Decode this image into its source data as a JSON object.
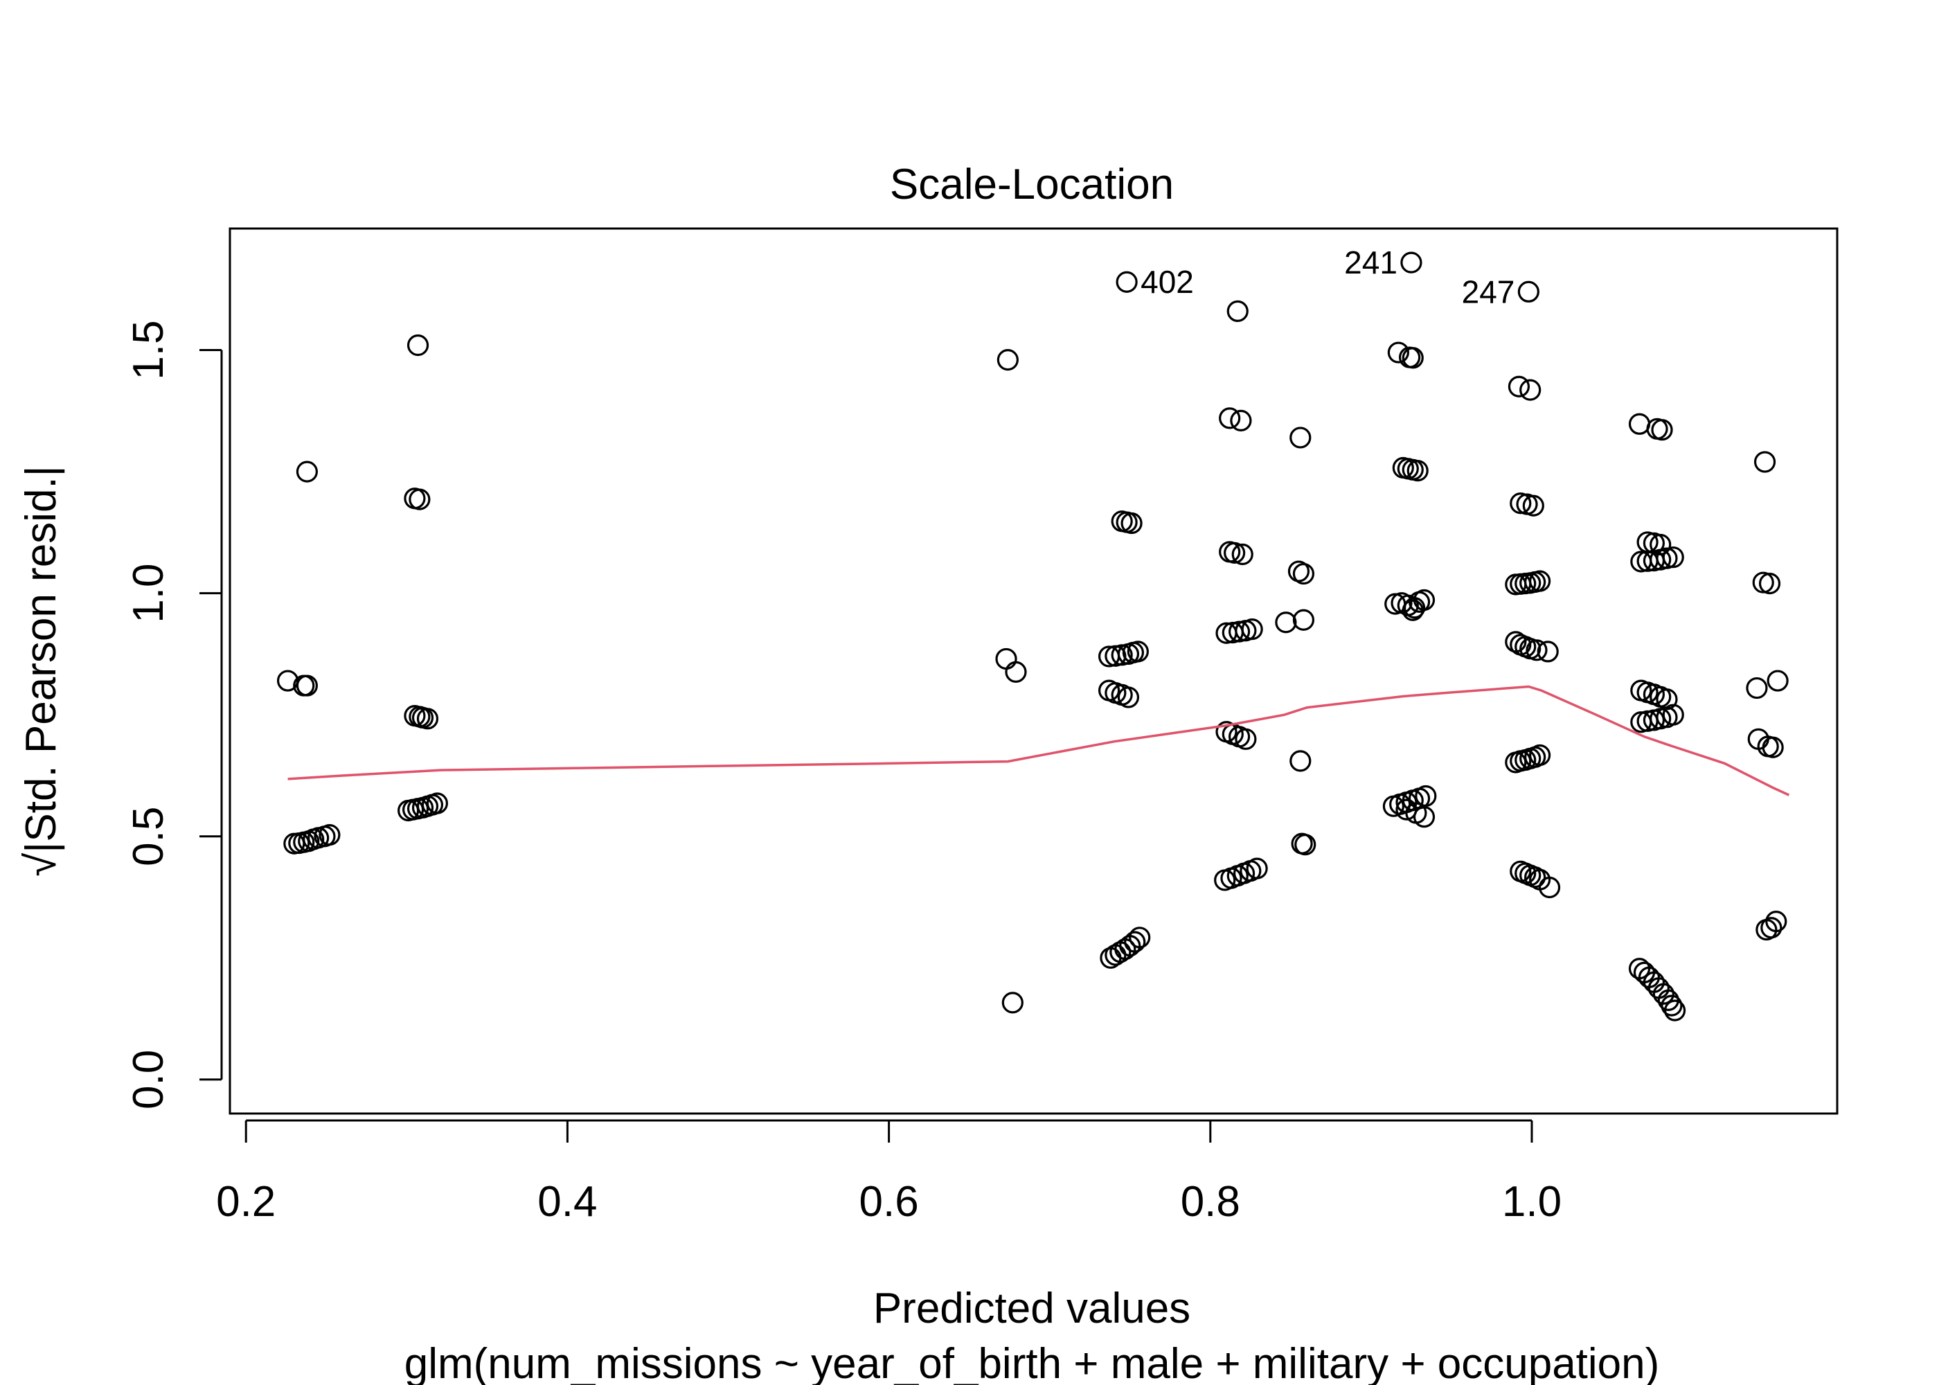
{
  "chart_data": {
    "type": "scatter",
    "title": "Scale-Location",
    "xlabel": "Predicted values",
    "ylabel": "√|Std. Pearson resid.|",
    "subtitle": "glm(num_missions ~ year_of_birth + male + military + occupation)",
    "xlim": [
      0.19,
      1.19
    ],
    "ylim": [
      -0.07,
      1.75
    ],
    "xticks": [
      0.2,
      0.4,
      0.6,
      0.8,
      1.0
    ],
    "xtick_labels": [
      "0.2",
      "0.4",
      "0.6",
      "0.8",
      "1.0"
    ],
    "yticks": [
      0.0,
      0.5,
      1.0,
      1.5
    ],
    "ytick_labels": [
      "0.0",
      "0.5",
      "1.0",
      "1.5"
    ],
    "grid": false,
    "point_color": "#000000",
    "smooth_color": "#DF536B",
    "labeled_points": [
      {
        "label": "402",
        "x": 0.748,
        "y": 1.64,
        "side": "right"
      },
      {
        "label": "241",
        "x": 0.925,
        "y": 1.68,
        "side": "left"
      },
      {
        "label": "247",
        "x": 0.998,
        "y": 1.62,
        "side": "left"
      }
    ],
    "points": [
      [
        0.226,
        0.82
      ],
      [
        0.236,
        0.81
      ],
      [
        0.238,
        0.81
      ],
      [
        0.238,
        1.25
      ],
      [
        0.23,
        0.485
      ],
      [
        0.233,
        0.486
      ],
      [
        0.236,
        0.488
      ],
      [
        0.239,
        0.49
      ],
      [
        0.242,
        0.494
      ],
      [
        0.245,
        0.497
      ],
      [
        0.249,
        0.5
      ],
      [
        0.252,
        0.503
      ],
      [
        0.307,
        1.51
      ],
      [
        0.305,
        1.195
      ],
      [
        0.308,
        1.193
      ],
      [
        0.305,
        0.748
      ],
      [
        0.308,
        0.746
      ],
      [
        0.31,
        0.744
      ],
      [
        0.313,
        0.742
      ],
      [
        0.301,
        0.553
      ],
      [
        0.304,
        0.555
      ],
      [
        0.307,
        0.557
      ],
      [
        0.31,
        0.559
      ],
      [
        0.313,
        0.562
      ],
      [
        0.316,
        0.565
      ],
      [
        0.319,
        0.568
      ],
      [
        0.674,
        1.48
      ],
      [
        0.673,
        0.865
      ],
      [
        0.679,
        0.838
      ],
      [
        0.677,
        0.158
      ],
      [
        0.745,
        1.148
      ],
      [
        0.748,
        1.146
      ],
      [
        0.751,
        1.144
      ],
      [
        0.737,
        0.87
      ],
      [
        0.741,
        0.871
      ],
      [
        0.745,
        0.873
      ],
      [
        0.749,
        0.875
      ],
      [
        0.752,
        0.878
      ],
      [
        0.755,
        0.88
      ],
      [
        0.737,
        0.8
      ],
      [
        0.741,
        0.795
      ],
      [
        0.745,
        0.791
      ],
      [
        0.749,
        0.786
      ],
      [
        0.738,
        0.25
      ],
      [
        0.741,
        0.256
      ],
      [
        0.744,
        0.262
      ],
      [
        0.747,
        0.268
      ],
      [
        0.75,
        0.275
      ],
      [
        0.753,
        0.283
      ],
      [
        0.756,
        0.292
      ],
      [
        0.817,
        1.58
      ],
      [
        0.812,
        1.36
      ],
      [
        0.819,
        1.355
      ],
      [
        0.812,
        1.085
      ],
      [
        0.815,
        1.083
      ],
      [
        0.82,
        1.08
      ],
      [
        0.81,
        0.918
      ],
      [
        0.814,
        0.919
      ],
      [
        0.818,
        0.921
      ],
      [
        0.822,
        0.923
      ],
      [
        0.826,
        0.926
      ],
      [
        0.81,
        0.715
      ],
      [
        0.814,
        0.71
      ],
      [
        0.818,
        0.705
      ],
      [
        0.822,
        0.7
      ],
      [
        0.809,
        0.41
      ],
      [
        0.813,
        0.414
      ],
      [
        0.817,
        0.419
      ],
      [
        0.821,
        0.424
      ],
      [
        0.825,
        0.429
      ],
      [
        0.829,
        0.434
      ],
      [
        0.856,
        1.32
      ],
      [
        0.855,
        1.045
      ],
      [
        0.858,
        1.04
      ],
      [
        0.847,
        0.94
      ],
      [
        0.858,
        0.945
      ],
      [
        0.856,
        0.655
      ],
      [
        0.857,
        0.485
      ],
      [
        0.859,
        0.483
      ],
      [
        0.917,
        1.495
      ],
      [
        0.924,
        1.485
      ],
      [
        0.926,
        1.484
      ],
      [
        0.92,
        1.258
      ],
      [
        0.923,
        1.256
      ],
      [
        0.926,
        1.254
      ],
      [
        0.929,
        1.252
      ],
      [
        0.915,
        0.978
      ],
      [
        0.919,
        0.98
      ],
      [
        0.923,
        0.975
      ],
      [
        0.927,
        0.97
      ],
      [
        0.93,
        0.982
      ],
      [
        0.933,
        0.986
      ],
      [
        0.926,
        0.965
      ],
      [
        0.914,
        0.562
      ],
      [
        0.918,
        0.566
      ],
      [
        0.922,
        0.57
      ],
      [
        0.926,
        0.574
      ],
      [
        0.93,
        0.578
      ],
      [
        0.934,
        0.583
      ],
      [
        0.922,
        0.555
      ],
      [
        0.928,
        0.548
      ],
      [
        0.933,
        0.54
      ],
      [
        0.992,
        1.425
      ],
      [
        0.999,
        1.418
      ],
      [
        0.993,
        1.185
      ],
      [
        0.997,
        1.183
      ],
      [
        1.001,
        1.18
      ],
      [
        0.99,
        1.018
      ],
      [
        0.993,
        1.019
      ],
      [
        0.996,
        1.02
      ],
      [
        0.999,
        1.021
      ],
      [
        1.002,
        1.023
      ],
      [
        1.005,
        1.025
      ],
      [
        0.99,
        0.9
      ],
      [
        0.993,
        0.894
      ],
      [
        0.996,
        0.89
      ],
      [
        0.999,
        0.886
      ],
      [
        1.003,
        0.883
      ],
      [
        1.01,
        0.88
      ],
      [
        0.99,
        0.652
      ],
      [
        0.993,
        0.655
      ],
      [
        0.996,
        0.657
      ],
      [
        0.999,
        0.66
      ],
      [
        1.002,
        0.663
      ],
      [
        1.005,
        0.667
      ],
      [
        0.993,
        0.428
      ],
      [
        0.996,
        0.424
      ],
      [
        0.999,
        0.42
      ],
      [
        1.002,
        0.416
      ],
      [
        1.005,
        0.411
      ],
      [
        1.011,
        0.395
      ],
      [
        1.067,
        1.348
      ],
      [
        1.078,
        1.338
      ],
      [
        1.081,
        1.336
      ],
      [
        1.072,
        1.105
      ],
      [
        1.076,
        1.103
      ],
      [
        1.08,
        1.1
      ],
      [
        1.068,
        1.065
      ],
      [
        1.072,
        1.066
      ],
      [
        1.076,
        1.067
      ],
      [
        1.08,
        1.069
      ],
      [
        1.084,
        1.072
      ],
      [
        1.088,
        1.074
      ],
      [
        1.068,
        0.8
      ],
      [
        1.072,
        0.796
      ],
      [
        1.076,
        0.792
      ],
      [
        1.08,
        0.787
      ],
      [
        1.084,
        0.782
      ],
      [
        1.068,
        0.735
      ],
      [
        1.072,
        0.737
      ],
      [
        1.076,
        0.739
      ],
      [
        1.08,
        0.742
      ],
      [
        1.084,
        0.745
      ],
      [
        1.088,
        0.75
      ],
      [
        1.067,
        0.228
      ],
      [
        1.07,
        0.22
      ],
      [
        1.073,
        0.21
      ],
      [
        1.076,
        0.2
      ],
      [
        1.079,
        0.188
      ],
      [
        1.082,
        0.176
      ],
      [
        1.085,
        0.163
      ],
      [
        1.087,
        0.152
      ],
      [
        1.089,
        0.142
      ],
      [
        1.145,
        1.27
      ],
      [
        1.144,
        1.022
      ],
      [
        1.148,
        1.02
      ],
      [
        1.14,
        0.805
      ],
      [
        1.153,
        0.82
      ],
      [
        1.141,
        0.7
      ],
      [
        1.147,
        0.685
      ],
      [
        1.15,
        0.683
      ],
      [
        1.146,
        0.308
      ],
      [
        1.149,
        0.312
      ],
      [
        1.152,
        0.325
      ]
    ],
    "smooth_line": [
      [
        0.226,
        0.618
      ],
      [
        0.26,
        0.625
      ],
      [
        0.32,
        0.636
      ],
      [
        0.4,
        0.64
      ],
      [
        0.5,
        0.645
      ],
      [
        0.6,
        0.65
      ],
      [
        0.674,
        0.654
      ],
      [
        0.74,
        0.695
      ],
      [
        0.81,
        0.728
      ],
      [
        0.846,
        0.75
      ],
      [
        0.86,
        0.765
      ],
      [
        0.92,
        0.788
      ],
      [
        0.95,
        0.796
      ],
      [
        0.998,
        0.808
      ],
      [
        1.006,
        0.8
      ],
      [
        1.04,
        0.75
      ],
      [
        1.07,
        0.705
      ],
      [
        1.085,
        0.688
      ],
      [
        1.12,
        0.65
      ],
      [
        1.15,
        0.6
      ],
      [
        1.16,
        0.585
      ]
    ]
  }
}
